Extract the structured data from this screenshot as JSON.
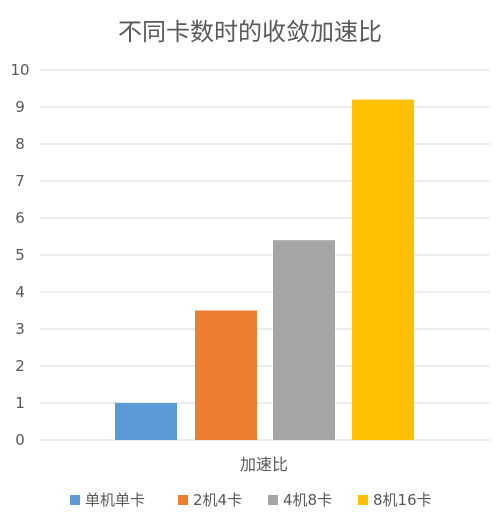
{
  "chart_data": {
    "type": "bar",
    "title": "不同卡数时的收敛加速比",
    "categories": [
      "加速比"
    ],
    "series": [
      {
        "name": "单机单卡",
        "values": [
          1.0
        ],
        "color": "#5b9bd5"
      },
      {
        "name": "2机4卡",
        "values": [
          3.5
        ],
        "color": "#ed7d31"
      },
      {
        "name": "4机8卡",
        "values": [
          5.4
        ],
        "color": "#a5a5a5"
      },
      {
        "name": "8机16卡",
        "values": [
          9.2
        ],
        "color": "#ffc000"
      }
    ],
    "ylim": [
      0,
      10
    ],
    "yticks": [
      0,
      1,
      2,
      3,
      4,
      5,
      6,
      7,
      8,
      9,
      10
    ],
    "grid": true,
    "legend_position": "bottom"
  }
}
